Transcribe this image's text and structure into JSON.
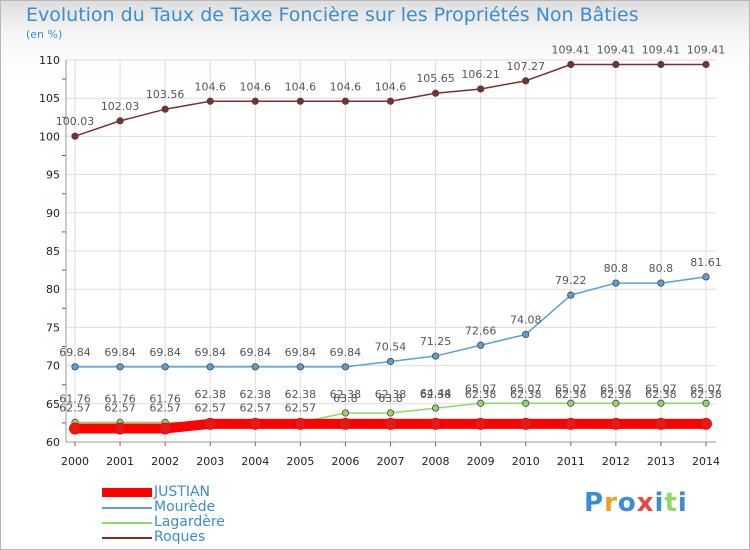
{
  "header": {
    "title": "Evolution du Taux de Taxe Foncière sur les Propriétés Non Bâties",
    "unit": "(en %)"
  },
  "logo": {
    "text": "Proxiti"
  },
  "chart_data": {
    "type": "line",
    "title": "Evolution du Taux de Taxe Foncière sur les Propriétés Non Bâties",
    "ylabel": "(en %)",
    "xlabel": "",
    "ylim": [
      60,
      110
    ],
    "yticks": [
      60,
      65,
      70,
      75,
      80,
      85,
      90,
      95,
      100,
      105,
      110
    ],
    "grid": true,
    "legend_position": "bottom-left",
    "categories": [
      "2000",
      "2001",
      "2002",
      "2003",
      "2004",
      "2005",
      "2006",
      "2007",
      "2008",
      "2009",
      "2010",
      "2011",
      "2012",
      "2013",
      "2014"
    ],
    "series": [
      {
        "name": "JUSTIAN",
        "color": "#ff0000",
        "values": [
          61.76,
          61.76,
          61.76,
          62.38,
          62.38,
          62.38,
          62.38,
          62.38,
          62.38,
          62.38,
          62.38,
          62.38,
          62.38,
          62.38,
          62.38
        ],
        "labels": [
          "61.76",
          "61.76",
          "61.76",
          "62.38",
          "62.38",
          "62.38",
          "62.38",
          "62.38",
          "62.38",
          "62.38",
          "62.38",
          "62.38",
          "62.38",
          "62.38",
          "62.38"
        ]
      },
      {
        "name": "Mourède",
        "color": "#5aa0d8",
        "values": [
          69.84,
          69.84,
          69.84,
          69.84,
          69.84,
          69.84,
          69.84,
          70.54,
          71.25,
          72.66,
          74.08,
          79.22,
          80.8,
          80.8,
          81.61
        ],
        "labels": [
          "69.84",
          "69.84",
          "69.84",
          "69.84",
          "69.84",
          "69.84",
          "69.84",
          "70.54",
          "71.25",
          "72.66",
          "74.08",
          "79.22",
          "80.8",
          "80.8",
          "81.61"
        ]
      },
      {
        "name": "Lagardère",
        "color": "#8ed86a",
        "values": [
          62.57,
          62.57,
          62.57,
          62.57,
          62.57,
          62.57,
          63.8,
          63.8,
          64.44,
          65.07,
          65.07,
          65.07,
          65.07,
          65.07,
          65.07
        ],
        "labels": [
          "62.57",
          "62.57",
          "62.57",
          "62.57",
          "62.57",
          "62.57",
          "63.8",
          "63.8",
          "64.44",
          "65.07",
          "65.07",
          "65.07",
          "65.07",
          "65.07",
          "65.07"
        ]
      },
      {
        "name": "Roques",
        "color": "#7a3030",
        "values": [
          100.03,
          102.03,
          103.56,
          104.6,
          104.6,
          104.6,
          104.6,
          104.6,
          105.65,
          106.21,
          107.27,
          109.41,
          109.41,
          109.41,
          109.41
        ],
        "labels": [
          "100.03",
          "102.03",
          "103.56",
          "104.6",
          "104.6",
          "104.6",
          "104.6",
          "104.6",
          "105.65",
          "106.21",
          "107.27",
          "109.41",
          "109.41",
          "109.41",
          "109.41"
        ]
      }
    ]
  }
}
